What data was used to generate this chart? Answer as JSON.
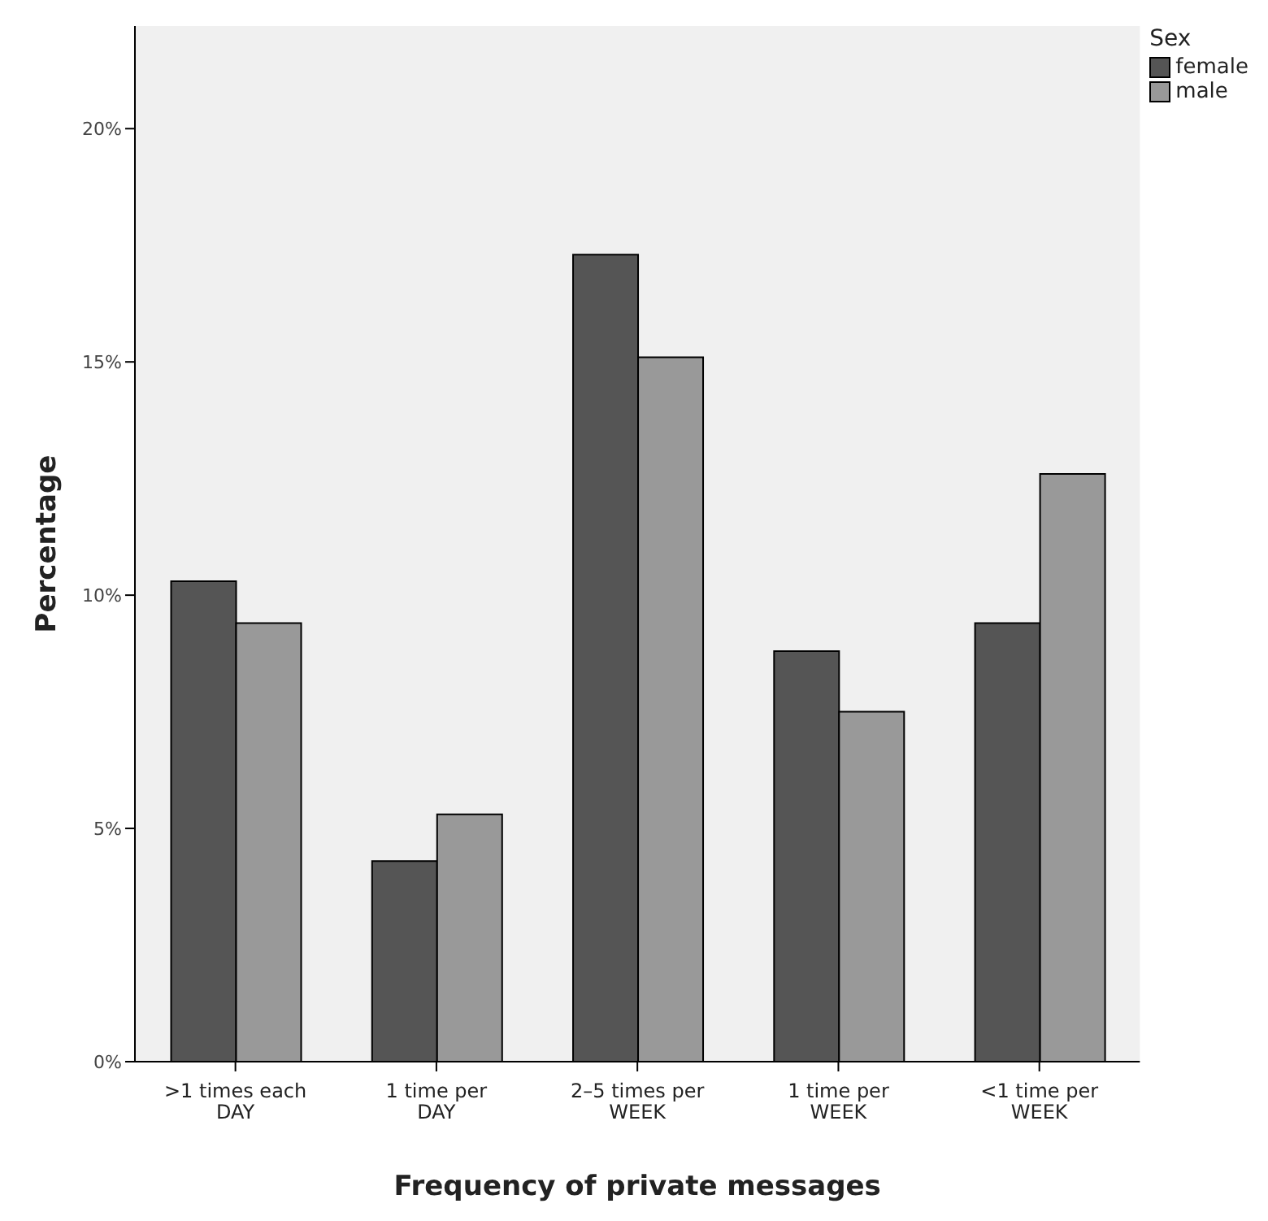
{
  "chart_data": {
    "type": "bar",
    "xlabel": "Frequency of private messages",
    "ylabel": "Percentage",
    "legend_title": "Sex",
    "categories": [
      ">1 times each DAY",
      "1 time per DAY",
      "2–5 times per WEEK",
      "1 time per WEEK",
      "<1 time per WEEK"
    ],
    "series": [
      {
        "name": "female",
        "color": "#555555",
        "values": [
          10.3,
          4.3,
          17.3,
          8.8,
          9.4
        ]
      },
      {
        "name": "male",
        "color": "#999999",
        "values": [
          9.4,
          5.3,
          15.1,
          7.5,
          12.6
        ]
      }
    ],
    "ylim": [
      0,
      22.2
    ],
    "yticks": [
      {
        "value": 0,
        "label": "0%"
      },
      {
        "value": 5,
        "label": "5%"
      },
      {
        "value": 10,
        "label": "10%"
      },
      {
        "value": 15,
        "label": "15%"
      },
      {
        "value": 20,
        "label": "20%"
      }
    ],
    "legend": "top right"
  }
}
